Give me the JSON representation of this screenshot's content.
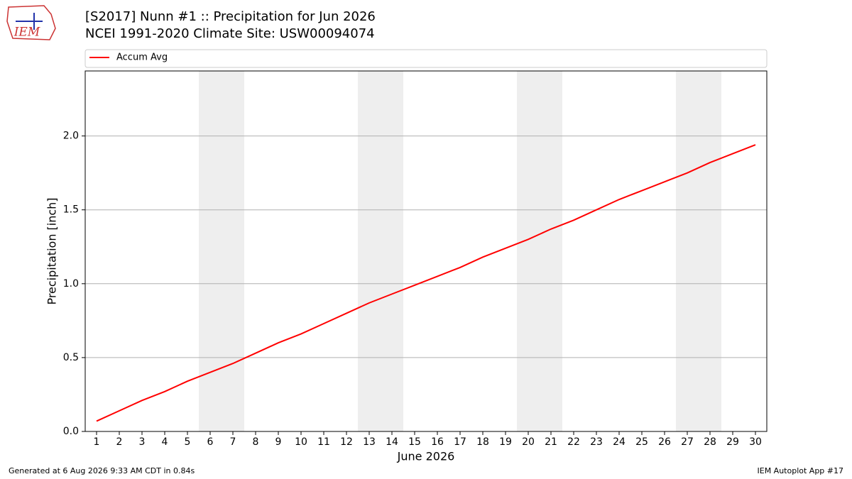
{
  "chart_data": {
    "type": "line",
    "title": "[S2017] Nunn #1 :: Precipitation for Jun 2026",
    "subtitle": "NCEI 1991-2020 Climate Site: USW00094074",
    "logo_text": "IEM",
    "x_label": "June 2026",
    "y_label": "Precipitation [inch]",
    "footer_left": "Generated at 6 Aug 2026 9:33 AM CDT in 0.84s",
    "footer_right": "IEM Autoplot App #17",
    "x": [
      1,
      2,
      3,
      4,
      5,
      6,
      7,
      8,
      9,
      10,
      11,
      12,
      13,
      14,
      15,
      16,
      17,
      18,
      19,
      20,
      21,
      22,
      23,
      24,
      25,
      26,
      27,
      28,
      29,
      30
    ],
    "series": [
      {
        "name": "Accum Avg",
        "color": "#ff0000",
        "values": [
          0.07,
          0.14,
          0.21,
          0.27,
          0.34,
          0.4,
          0.46,
          0.53,
          0.6,
          0.66,
          0.73,
          0.8,
          0.87,
          0.93,
          0.99,
          1.05,
          1.11,
          1.18,
          1.24,
          1.3,
          1.37,
          1.43,
          1.5,
          1.57,
          1.63,
          1.69,
          1.75,
          1.82,
          1.88,
          1.94
        ]
      }
    ],
    "shaded_x": [
      [
        5.5,
        7.5
      ],
      [
        12.5,
        14.5
      ],
      [
        19.5,
        21.5
      ],
      [
        26.5,
        28.5
      ]
    ],
    "shade_color": "#eeeeee",
    "xlim": [
      0.5,
      30.5
    ],
    "xticks": [
      1,
      2,
      3,
      4,
      5,
      6,
      7,
      8,
      9,
      10,
      11,
      12,
      13,
      14,
      15,
      16,
      17,
      18,
      19,
      20,
      21,
      22,
      23,
      24,
      25,
      26,
      27,
      28,
      29,
      30
    ],
    "ylim": [
      0,
      2.44
    ],
    "yticks": [
      {
        "value": 0,
        "label": "0.0"
      },
      0.5,
      {
        "value": 1,
        "label": "1.0"
      },
      1.5,
      {
        "value": 2,
        "label": "2.0"
      }
    ],
    "grid": true,
    "legend": "top"
  }
}
